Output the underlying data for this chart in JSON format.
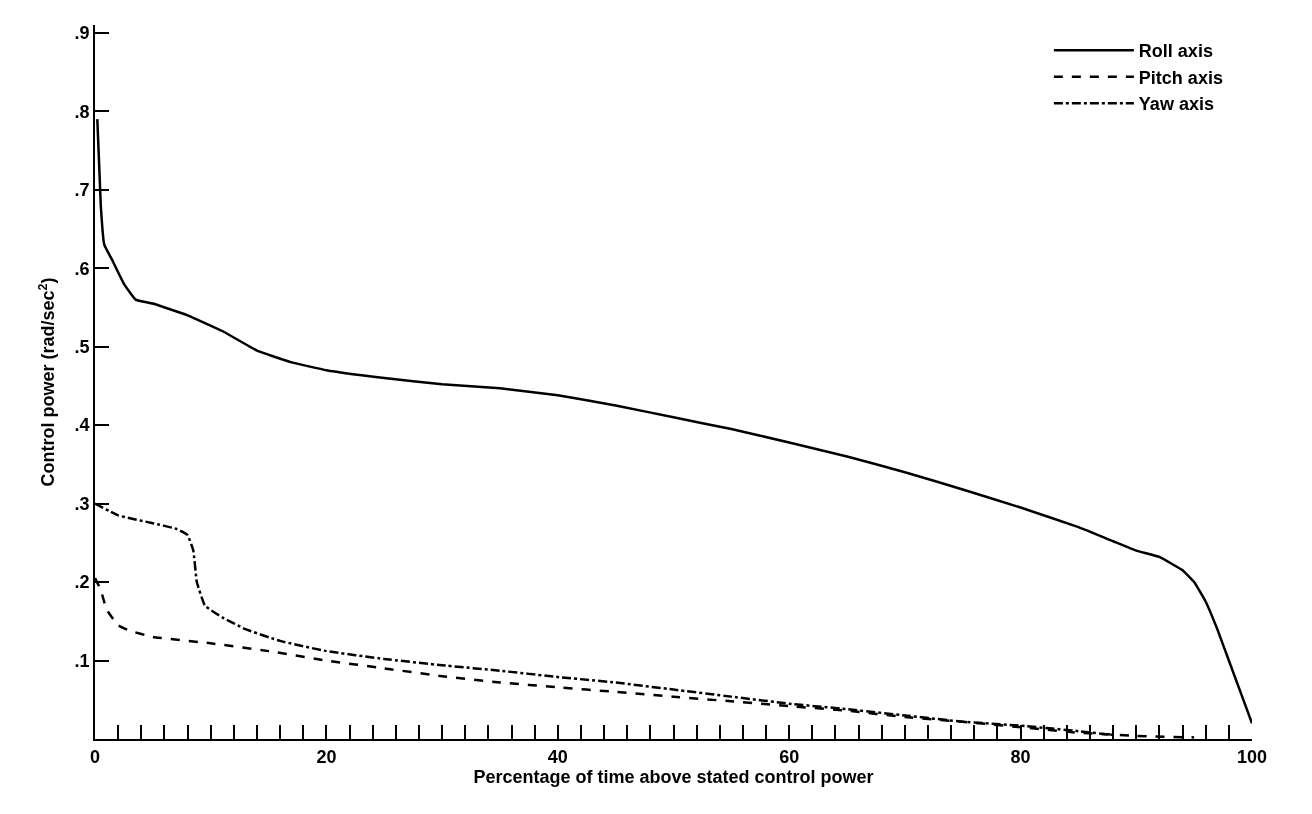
{
  "chart_data": {
    "type": "line",
    "xlabel": "Percentage of time above stated control power",
    "ylabel": "Control power (rad/sec$^{2}$)",
    "xlim": [
      0,
      100
    ],
    "ylim": [
      0,
      0.91
    ],
    "xticks": [
      0,
      {
        "value": 2,
        "label": null
      },
      {
        "value": 4,
        "label": null
      },
      {
        "value": 6,
        "label": null
      },
      {
        "value": 8,
        "label": null
      },
      {
        "value": 10,
        "label": null
      },
      {
        "value": 12,
        "label": null
      },
      {
        "value": 14,
        "label": null
      },
      {
        "value": 16,
        "label": null
      },
      {
        "value": 18,
        "label": null
      },
      20,
      {
        "value": 22,
        "label": null
      },
      {
        "value": 24,
        "label": null
      },
      {
        "value": 26,
        "label": null
      },
      {
        "value": 28,
        "label": null
      },
      {
        "value": 30,
        "label": null
      },
      {
        "value": 32,
        "label": null
      },
      {
        "value": 34,
        "label": null
      },
      {
        "value": 36,
        "label": null
      },
      {
        "value": 38,
        "label": null
      },
      40,
      {
        "value": 42,
        "label": null
      },
      {
        "value": 44,
        "label": null
      },
      {
        "value": 46,
        "label": null
      },
      {
        "value": 48,
        "label": null
      },
      {
        "value": 50,
        "label": null
      },
      {
        "value": 52,
        "label": null
      },
      {
        "value": 54,
        "label": null
      },
      {
        "value": 56,
        "label": null
      },
      {
        "value": 58,
        "label": null
      },
      60,
      {
        "value": 62,
        "label": null
      },
      {
        "value": 64,
        "label": null
      },
      {
        "value": 66,
        "label": null
      },
      {
        "value": 68,
        "label": null
      },
      {
        "value": 70,
        "label": null
      },
      {
        "value": 72,
        "label": null
      },
      {
        "value": 74,
        "label": null
      },
      {
        "value": 76,
        "label": null
      },
      {
        "value": 78,
        "label": null
      },
      80,
      {
        "value": 82,
        "label": null
      },
      {
        "value": 84,
        "label": null
      },
      {
        "value": 86,
        "label": null
      },
      {
        "value": 88,
        "label": null
      },
      {
        "value": 90,
        "label": null
      },
      {
        "value": 92,
        "label": null
      },
      {
        "value": 94,
        "label": null
      },
      {
        "value": 96,
        "label": null
      },
      {
        "value": 98,
        "label": null
      },
      100
    ],
    "yticks": [
      {
        "value": 0.1,
        "label": ".1"
      },
      {
        "value": 0.2,
        "label": ".2"
      },
      {
        "value": 0.3,
        "label": ".3"
      },
      {
        "value": 0.4,
        "label": ".4"
      },
      {
        "value": 0.5,
        "label": ".5"
      },
      {
        "value": 0.6,
        "label": ".6"
      },
      {
        "value": 0.7,
        "label": ".7"
      },
      {
        "value": 0.8,
        "label": ".8"
      },
      {
        "value": 0.9,
        "label": ".9"
      }
    ],
    "legend": "top right",
    "marker": "none",
    "series": [
      {
        "name": "Roll axis",
        "color": "#000000",
        "line_style": "solid",
        "x": [
          0.2,
          0.5,
          0.8,
          1.5,
          2.5,
          3.5,
          5,
          8,
          11,
          14,
          17,
          20,
          25,
          30,
          35,
          40,
          45,
          50,
          55,
          60,
          65,
          70,
          75,
          80,
          85,
          88,
          90,
          92,
          94,
          95,
          96,
          97,
          98,
          99,
          100
        ],
        "values": [
          0.79,
          0.68,
          0.63,
          0.61,
          0.58,
          0.56,
          0.555,
          0.54,
          0.52,
          0.495,
          0.48,
          0.47,
          0.46,
          0.452,
          0.447,
          0.438,
          0.425,
          0.41,
          0.395,
          0.378,
          0.36,
          0.34,
          0.318,
          0.295,
          0.27,
          0.252,
          0.24,
          0.232,
          0.215,
          0.2,
          0.175,
          0.14,
          0.1,
          0.06,
          0.02
        ]
      },
      {
        "name": "Pitch axis",
        "color": "#000000",
        "line_style": "dashed",
        "x": [
          0,
          0.5,
          1,
          2,
          3,
          5,
          10,
          15,
          20,
          25,
          30,
          35,
          40,
          45,
          50,
          55,
          60,
          65,
          70,
          75,
          80,
          85,
          90,
          95
        ],
        "values": [
          0.205,
          0.19,
          0.165,
          0.145,
          0.138,
          0.13,
          0.122,
          0.112,
          0.1,
          0.09,
          0.08,
          0.072,
          0.066,
          0.06,
          0.054,
          0.048,
          0.042,
          0.036,
          0.028,
          0.022,
          0.015,
          0.008,
          0.004,
          0.002
        ]
      },
      {
        "name": "Yaw axis",
        "color": "#000000",
        "line_style": "dashdot",
        "x": [
          0,
          2,
          5,
          7,
          8,
          8.5,
          8.8,
          9.5,
          11,
          13,
          16,
          20,
          25,
          30,
          35,
          40,
          45,
          50,
          55,
          60,
          65,
          70,
          75,
          80,
          85,
          88
        ],
        "values": [
          0.3,
          0.285,
          0.275,
          0.268,
          0.26,
          0.24,
          0.2,
          0.17,
          0.155,
          0.14,
          0.125,
          0.112,
          0.102,
          0.094,
          0.087,
          0.079,
          0.072,
          0.063,
          0.054,
          0.045,
          0.038,
          0.03,
          0.022,
          0.017,
          0.01,
          0.005
        ]
      }
    ]
  }
}
